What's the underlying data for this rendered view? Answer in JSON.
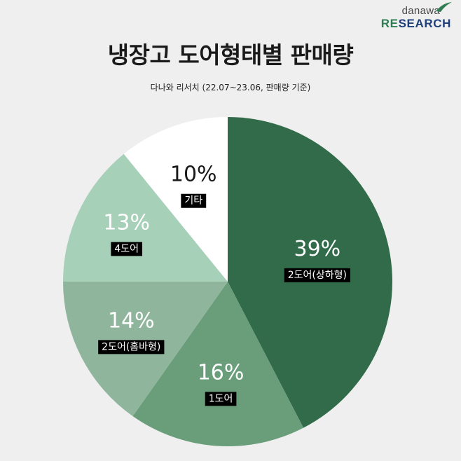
{
  "logo": {
    "top": "danawa",
    "bottom_accent": "RE",
    "bottom_rest": "SEARCH"
  },
  "header": {
    "title": "냉장고 도어형태별 판매량",
    "subtitle": "다나와 리서치 (22.07~23.06, 판매량 기준)"
  },
  "chart_data": {
    "type": "pie",
    "title": "냉장고 도어형태별 판매량",
    "subtitle": "다나와 리서치 (22.07~23.06, 판매량 기준)",
    "slices": [
      {
        "label": "2도어(상하형)",
        "value": 39,
        "value_label": "39%",
        "color": "#316b49"
      },
      {
        "label": "1도어",
        "value": 16,
        "value_label": "16%",
        "color": "#6a9e7b"
      },
      {
        "label": "2도어(홈바형)",
        "value": 14,
        "value_label": "14%",
        "color": "#8fb69c"
      },
      {
        "label": "4도어",
        "value": 13,
        "value_label": "13%",
        "color": "#a6d1b8"
      },
      {
        "label": "기타",
        "value": 10,
        "value_label": "10%",
        "color": "#ffffff"
      }
    ],
    "start": "12 o'clock",
    "direction": "clockwise",
    "legend": "none"
  }
}
